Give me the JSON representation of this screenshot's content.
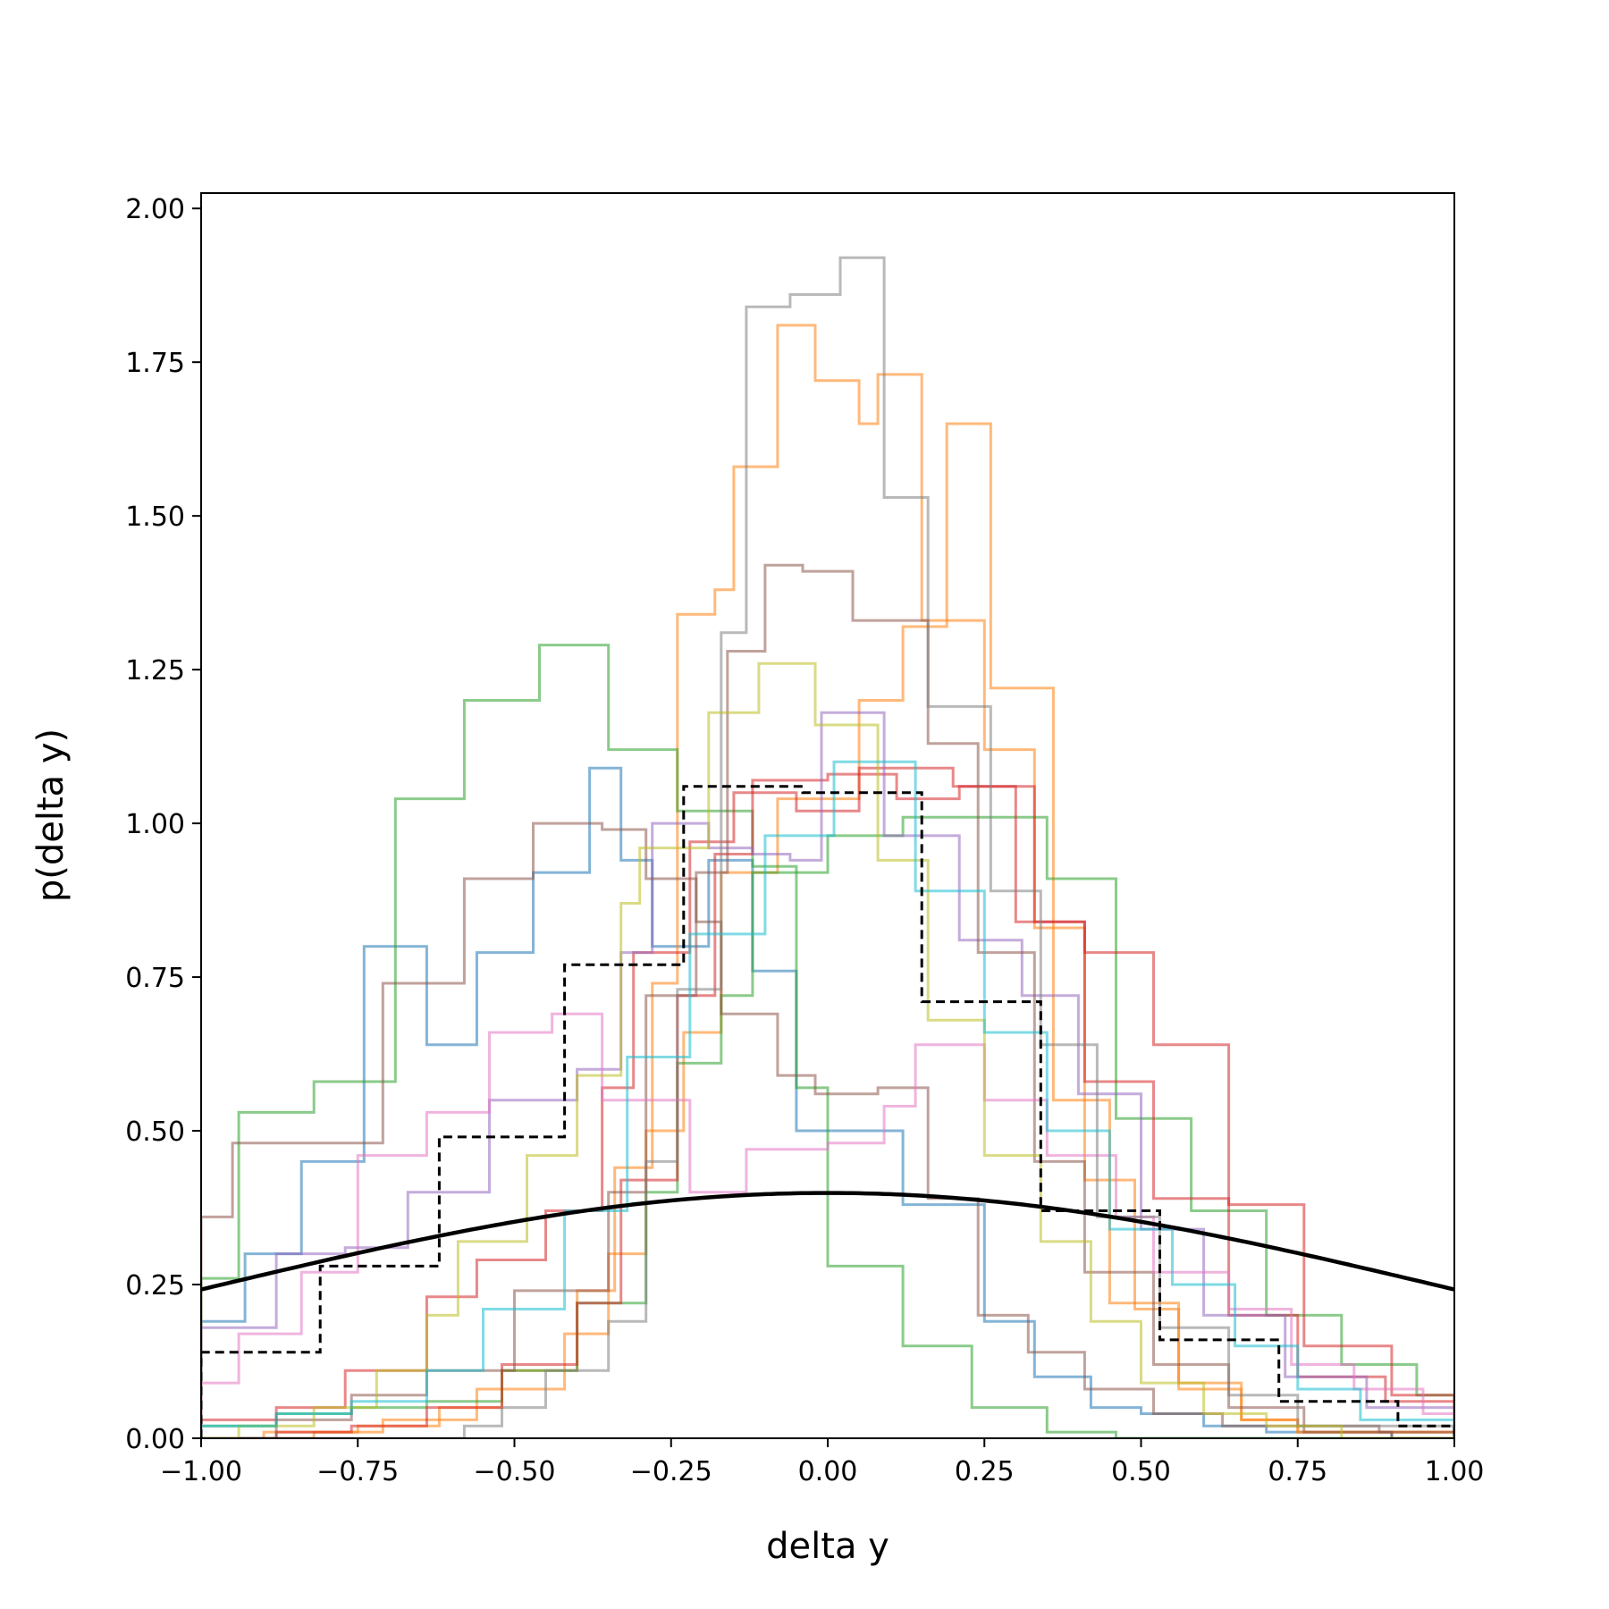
{
  "chart_data": {
    "type": "step-histogram",
    "title": "",
    "xlabel": "delta y",
    "ylabel": "p(delta y)",
    "xlim": [
      -1.0,
      1.0
    ],
    "ylim": [
      0.0,
      2.025
    ],
    "grid": false,
    "legend": "none",
    "xticks": [
      -1.0,
      -0.75,
      -0.5,
      -0.25,
      0.0,
      0.25,
      0.5,
      0.75,
      1.0
    ],
    "xtick_labels": [
      "−1.00",
      "−0.75",
      "−0.50",
      "−0.25",
      "0.00",
      "0.25",
      "0.50",
      "0.75",
      "1.00"
    ],
    "yticks": [
      0.0,
      0.25,
      0.5,
      0.75,
      1.0,
      1.25,
      1.5,
      1.75,
      2.0
    ],
    "ytick_labels": [
      "0.00",
      "0.25",
      "0.50",
      "0.75",
      "1.00",
      "1.25",
      "1.50",
      "1.75",
      "2.00"
    ],
    "series": [
      {
        "color": "#1f77b4",
        "opacity": 0.55,
        "x": [
          -1.0,
          -0.93,
          -0.84,
          -0.74,
          -0.64,
          -0.56,
          -0.47,
          -0.38,
          -0.33,
          -0.28,
          -0.19,
          -0.12,
          -0.05,
          0.12,
          0.25,
          0.33,
          0.42,
          0.5,
          0.6,
          0.7,
          0.8,
          0.9,
          1.0
        ],
        "y": [
          0.19,
          0.3,
          0.45,
          0.8,
          0.64,
          0.79,
          0.92,
          1.09,
          0.94,
          0.8,
          0.94,
          0.76,
          0.5,
          0.38,
          0.19,
          0.1,
          0.05,
          0.04,
          0.02,
          0.01,
          0.01,
          0.0
        ]
      },
      {
        "color": "#ff7f0e",
        "opacity": 0.55,
        "x": [
          -1.0,
          -0.82,
          -0.71,
          -0.56,
          -0.42,
          -0.35,
          -0.29,
          -0.23,
          -0.17,
          -0.08,
          0.05,
          0.12,
          0.19,
          0.26,
          0.36,
          0.45,
          0.56,
          0.66,
          0.75,
          1.0
        ],
        "y": [
          0.0,
          0.01,
          0.03,
          0.08,
          0.17,
          0.3,
          0.5,
          0.66,
          0.92,
          1.04,
          1.2,
          1.32,
          1.65,
          1.22,
          0.55,
          0.22,
          0.08,
          0.03,
          0.01,
          0.0
        ]
      },
      {
        "color": "#ff7f0e",
        "opacity": 0.55,
        "x": [
          -1.0,
          -0.9,
          -0.75,
          -0.62,
          -0.52,
          -0.4,
          -0.34,
          -0.28,
          -0.24,
          -0.18,
          -0.15,
          -0.08,
          -0.02,
          0.05,
          0.08,
          0.15,
          0.25,
          0.33,
          0.41,
          0.49,
          0.56,
          0.66,
          0.75,
          1.0
        ],
        "y": [
          0.0,
          0.01,
          0.02,
          0.05,
          0.11,
          0.24,
          0.44,
          0.74,
          1.34,
          1.38,
          1.58,
          1.81,
          1.72,
          1.65,
          1.73,
          1.33,
          1.12,
          0.83,
          0.42,
          0.21,
          0.09,
          0.03,
          0.01,
          0.0
        ]
      },
      {
        "color": "#2ca02c",
        "opacity": 0.55,
        "x": [
          -1.0,
          -0.94,
          -0.82,
          -0.69,
          -0.58,
          -0.46,
          -0.35,
          -0.24,
          -0.12,
          -0.05,
          0.0,
          0.12,
          0.23,
          0.35,
          0.46,
          0.58,
          0.7,
          0.82,
          0.94,
          1.0
        ],
        "y": [
          0.26,
          0.53,
          0.58,
          1.04,
          1.2,
          1.29,
          1.12,
          1.02,
          0.93,
          0.57,
          0.28,
          0.15,
          0.05,
          0.01,
          0.0,
          0.0,
          0.0,
          0.0,
          0.0
        ]
      },
      {
        "color": "#2ca02c",
        "opacity": 0.55,
        "x": [
          -1.0,
          -0.88,
          -0.76,
          -0.64,
          -0.52,
          -0.4,
          -0.29,
          -0.24,
          -0.17,
          -0.12,
          0.0,
          0.12,
          0.23,
          0.35,
          0.46,
          0.58,
          0.7,
          0.82,
          0.94,
          1.0
        ],
        "y": [
          0.02,
          0.04,
          0.05,
          0.06,
          0.11,
          0.22,
          0.4,
          0.61,
          0.72,
          0.92,
          0.98,
          1.01,
          1.01,
          0.91,
          0.52,
          0.37,
          0.2,
          0.12,
          0.07,
          0.0
        ]
      },
      {
        "color": "#d62728",
        "opacity": 0.55,
        "x": [
          -1.0,
          -0.88,
          -0.77,
          -0.64,
          -0.56,
          -0.45,
          -0.36,
          -0.31,
          -0.22,
          -0.15,
          -0.05,
          0.05,
          0.2,
          0.3,
          0.41,
          0.52,
          0.64,
          0.75,
          0.89,
          1.0
        ],
        "y": [
          0.03,
          0.05,
          0.11,
          0.23,
          0.29,
          0.37,
          0.57,
          0.79,
          0.97,
          1.05,
          1.02,
          1.09,
          1.06,
          0.84,
          0.58,
          0.39,
          0.2,
          0.1,
          0.06,
          0.0
        ]
      },
      {
        "color": "#d62728",
        "opacity": 0.55,
        "x": [
          -1.0,
          -0.88,
          -0.76,
          -0.64,
          -0.52,
          -0.4,
          -0.33,
          -0.24,
          -0.18,
          -0.12,
          0.0,
          0.11,
          0.21,
          0.33,
          0.41,
          0.52,
          0.64,
          0.76,
          0.9,
          1.0
        ],
        "y": [
          0.0,
          0.01,
          0.02,
          0.05,
          0.12,
          0.22,
          0.42,
          0.72,
          0.95,
          1.07,
          1.08,
          1.04,
          1.06,
          0.84,
          0.79,
          0.64,
          0.38,
          0.15,
          0.07,
          0.0
        ]
      },
      {
        "color": "#9467bd",
        "opacity": 0.55,
        "x": [
          -1.0,
          -0.88,
          -0.77,
          -0.67,
          -0.54,
          -0.4,
          -0.33,
          -0.28,
          -0.19,
          -0.12,
          -0.06,
          -0.01,
          0.09,
          0.21,
          0.31,
          0.4,
          0.5,
          0.6,
          0.73,
          0.86,
          1.0
        ],
        "y": [
          0.18,
          0.3,
          0.31,
          0.4,
          0.55,
          0.6,
          0.79,
          1.0,
          0.96,
          0.95,
          0.94,
          1.18,
          0.98,
          0.81,
          0.72,
          0.56,
          0.34,
          0.2,
          0.1,
          0.05,
          0.0
        ]
      },
      {
        "color": "#8c564b",
        "opacity": 0.55,
        "x": [
          -1.0,
          -0.95,
          -0.82,
          -0.71,
          -0.58,
          -0.47,
          -0.36,
          -0.29,
          -0.21,
          -0.17,
          -0.08,
          -0.02,
          0.08,
          0.16,
          0.24,
          0.32,
          0.41,
          0.52,
          0.63,
          0.76,
          0.9,
          1.0
        ],
        "y": [
          0.36,
          0.48,
          0.48,
          0.74,
          0.91,
          1.0,
          0.99,
          0.91,
          0.84,
          0.69,
          0.59,
          0.56,
          0.57,
          0.39,
          0.2,
          0.14,
          0.08,
          0.04,
          0.02,
          0.01,
          0.0
        ]
      },
      {
        "color": "#8c564b",
        "opacity": 0.55,
        "x": [
          -1.0,
          -0.88,
          -0.76,
          -0.64,
          -0.5,
          -0.35,
          -0.29,
          -0.21,
          -0.16,
          -0.1,
          -0.04,
          0.04,
          0.16,
          0.24,
          0.33,
          0.41,
          0.52,
          0.64,
          0.76,
          0.88,
          1.0
        ],
        "y": [
          0.0,
          0.03,
          0.07,
          0.11,
          0.24,
          0.4,
          0.72,
          0.92,
          1.28,
          1.42,
          1.41,
          1.33,
          1.13,
          0.79,
          0.45,
          0.27,
          0.12,
          0.05,
          0.02,
          0.01,
          0.0
        ]
      },
      {
        "color": "#e377c2",
        "opacity": 0.55,
        "x": [
          -1.0,
          -0.94,
          -0.84,
          -0.75,
          -0.64,
          -0.54,
          -0.44,
          -0.36,
          -0.22,
          -0.13,
          0.0,
          0.09,
          0.14,
          0.25,
          0.35,
          0.46,
          0.52,
          0.64,
          0.74,
          0.84,
          0.95,
          1.0
        ],
        "y": [
          0.09,
          0.17,
          0.27,
          0.46,
          0.53,
          0.66,
          0.69,
          0.55,
          0.4,
          0.47,
          0.48,
          0.54,
          0.64,
          0.55,
          0.46,
          0.36,
          0.27,
          0.21,
          0.12,
          0.08,
          0.04,
          0.0
        ]
      },
      {
        "color": "#7f7f7f",
        "opacity": 0.55,
        "x": [
          -1.0,
          -0.58,
          -0.52,
          -0.45,
          -0.35,
          -0.29,
          -0.24,
          -0.17,
          -0.13,
          -0.06,
          0.02,
          0.09,
          0.16,
          0.26,
          0.34,
          0.43,
          0.53,
          0.64,
          0.75,
          1.0
        ],
        "y": [
          0.0,
          0.02,
          0.05,
          0.11,
          0.19,
          0.45,
          0.73,
          1.31,
          1.84,
          1.86,
          1.92,
          1.53,
          1.19,
          0.89,
          0.64,
          0.36,
          0.18,
          0.07,
          0.02,
          0.0
        ]
      },
      {
        "color": "#bcbd22",
        "opacity": 0.55,
        "x": [
          -1.0,
          -0.94,
          -0.82,
          -0.72,
          -0.64,
          -0.59,
          -0.48,
          -0.4,
          -0.33,
          -0.3,
          -0.19,
          -0.11,
          -0.02,
          0.08,
          0.16,
          0.25,
          0.34,
          0.42,
          0.5,
          0.6,
          0.7,
          0.82,
          1.0
        ],
        "y": [
          0.0,
          0.02,
          0.05,
          0.11,
          0.2,
          0.32,
          0.46,
          0.59,
          0.87,
          0.96,
          1.18,
          1.26,
          1.16,
          0.94,
          0.68,
          0.46,
          0.32,
          0.19,
          0.09,
          0.04,
          0.02,
          0.0
        ]
      },
      {
        "color": "#17becf",
        "opacity": 0.55,
        "x": [
          -1.0,
          -0.88,
          -0.76,
          -0.64,
          -0.55,
          -0.42,
          -0.32,
          -0.22,
          -0.1,
          0.01,
          0.14,
          0.25,
          0.35,
          0.45,
          0.55,
          0.65,
          0.75,
          0.85,
          1.0
        ],
        "y": [
          0.02,
          0.04,
          0.06,
          0.11,
          0.21,
          0.37,
          0.62,
          0.82,
          0.98,
          1.1,
          0.89,
          0.66,
          0.5,
          0.34,
          0.25,
          0.15,
          0.08,
          0.03,
          0.0
        ]
      },
      {
        "color": "#000000",
        "opacity": 1.0,
        "dashed": true,
        "x": [
          -1.0,
          -0.81,
          -0.62,
          -0.42,
          -0.23,
          -0.04,
          0.15,
          0.34,
          0.53,
          0.72,
          0.91,
          1.0
        ],
        "y": [
          0.14,
          0.28,
          0.49,
          0.77,
          1.06,
          1.05,
          0.71,
          0.37,
          0.16,
          0.06,
          0.02
        ]
      }
    ],
    "reference_curve": {
      "type": "normal_pdf",
      "mean": 0.0,
      "std": 1.0,
      "color": "#000000"
    }
  }
}
